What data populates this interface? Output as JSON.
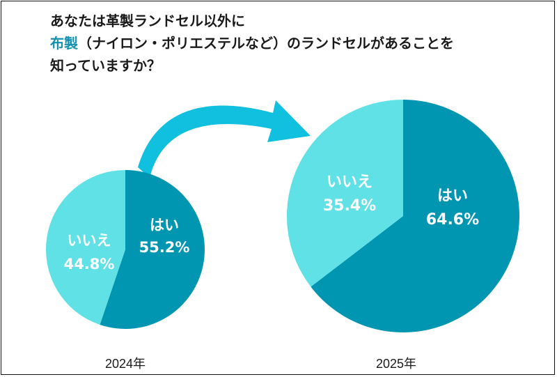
{
  "title": {
    "line1": "あなたは革製ランドセル以外に",
    "line2_accent": "布製",
    "line2_rest": "（ナイロン・ポリエステルなど）のランドセルがあることを",
    "line3": "知っていますか？"
  },
  "colors": {
    "yes": "#0096b2",
    "no": "#5fe1e6",
    "arrow": "#11bfde",
    "title_accent": "#1591b0"
  },
  "chart_data": [
    {
      "type": "pie",
      "year_label": "2024年",
      "slices": [
        {
          "label": "はい",
          "value": 55.2,
          "value_label": "55.2%"
        },
        {
          "label": "いいえ",
          "value": 44.8,
          "value_label": "44.8%"
        }
      ]
    },
    {
      "type": "pie",
      "year_label": "2025年",
      "slices": [
        {
          "label": "はい",
          "value": 64.6,
          "value_label": "64.6%"
        },
        {
          "label": "いいえ",
          "value": 35.4,
          "value_label": "35.4%"
        }
      ]
    }
  ]
}
